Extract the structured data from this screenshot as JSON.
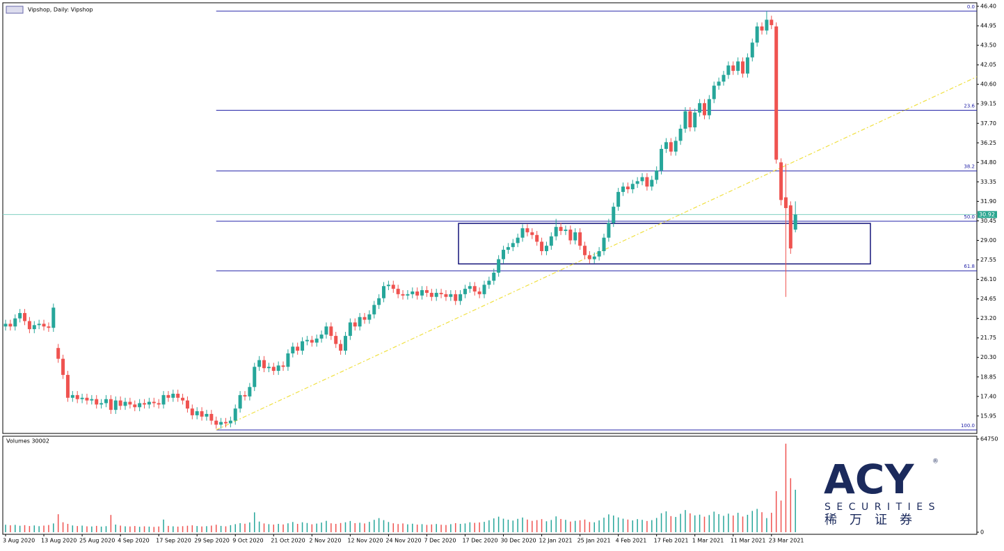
{
  "chart_data": {
    "type": "candlestick",
    "title": "Vipshop, Daily: Vipshop",
    "categories": [
      "3 Aug 2020",
      null,
      null,
      null,
      null,
      null,
      null,
      null,
      "13 Aug 2020",
      null,
      null,
      null,
      null,
      null,
      null,
      null,
      "25 Aug 2020",
      null,
      null,
      null,
      null,
      null,
      null,
      null,
      "4 Sep 2020",
      null,
      null,
      null,
      null,
      null,
      null,
      null,
      "17 Sep 2020",
      null,
      null,
      null,
      null,
      null,
      null,
      null,
      "29 Sep 2020",
      null,
      null,
      null,
      null,
      null,
      null,
      null,
      "9 Oct 2020",
      null,
      null,
      null,
      null,
      null,
      null,
      null,
      "21 Oct 2020",
      null,
      null,
      null,
      null,
      null,
      null,
      null,
      "2 Nov 2020",
      null,
      null,
      null,
      null,
      null,
      null,
      null,
      "12 Nov 2020",
      null,
      null,
      null,
      null,
      null,
      null,
      null,
      "24 Nov 2020",
      null,
      null,
      null,
      null,
      null,
      null,
      null,
      "7 Dec 2020",
      null,
      null,
      null,
      null,
      null,
      null,
      null,
      "17 Dec 2020",
      null,
      null,
      null,
      null,
      null,
      null,
      null,
      "30 Dec 2020",
      null,
      null,
      null,
      null,
      null,
      null,
      null,
      "12 Jan 2021",
      null,
      null,
      null,
      null,
      null,
      null,
      null,
      "25 Jan 2021",
      null,
      null,
      null,
      null,
      null,
      null,
      null,
      "4 Feb 2021",
      null,
      null,
      null,
      null,
      null,
      null,
      null,
      "17 Feb 2021",
      null,
      null,
      null,
      null,
      null,
      null,
      null,
      "1 Mar 2021",
      null,
      null,
      null,
      null,
      null,
      null,
      null,
      "11 Mar 2021",
      null,
      null,
      null,
      null,
      null,
      null,
      null,
      "23 Mar 2021",
      null,
      null,
      null,
      null,
      null
    ],
    "open": [
      22.6,
      22.8,
      22.6,
      23.2,
      23.6,
      23.0,
      22.4,
      22.7,
      22.8,
      22.6,
      22.5,
      21.0,
      20.2,
      19.0,
      17.3,
      17.5,
      17.2,
      17.3,
      17.1,
      17.2,
      16.8,
      16.9,
      17.2,
      16.4,
      17.1,
      16.7,
      17.0,
      16.8,
      16.6,
      16.9,
      16.8,
      17.0,
      16.9,
      16.8,
      17.5,
      17.3,
      17.6,
      17.3,
      17.1,
      16.5,
      16.0,
      16.3,
      15.9,
      16.1,
      15.6,
      15.3,
      15.5,
      15.4,
      15.6,
      16.5,
      17.5,
      17.4,
      18.1,
      19.6,
      20.1,
      19.5,
      19.6,
      19.3,
      19.7,
      19.6,
      20.6,
      21.1,
      20.8,
      21.5,
      21.6,
      21.4,
      21.7,
      22.0,
      22.6,
      21.9,
      21.3,
      20.8,
      21.9,
      22.9,
      22.6,
      23.3,
      23.1,
      23.5,
      24.2,
      24.7,
      25.6,
      25.7,
      25.4,
      25.0,
      24.9,
      25.0,
      25.2,
      24.9,
      25.3,
      25.1,
      24.8,
      25.1,
      25.0,
      24.8,
      25.0,
      24.5,
      25.0,
      25.4,
      25.6,
      25.2,
      25.0,
      25.7,
      26.0,
      26.6,
      27.6,
      28.3,
      28.5,
      28.8,
      29.2,
      29.9,
      29.6,
      29.4,
      28.9,
      28.2,
      28.6,
      29.3,
      30.0,
      29.7,
      29.8,
      29.0,
      29.6,
      28.6,
      27.9,
      27.6,
      27.8,
      28.2,
      29.2,
      30.3,
      31.5,
      32.6,
      33.0,
      32.8,
      33.2,
      33.4,
      33.7,
      33.0,
      33.5,
      34.2,
      35.8,
      36.3,
      35.6,
      36.4,
      37.3,
      38.6,
      37.4,
      38.5,
      39.2,
      38.3,
      39.5,
      40.5,
      40.8,
      41.3,
      42.0,
      41.6,
      42.3,
      41.4,
      42.6,
      43.7,
      44.9,
      44.6,
      45.4,
      44.9,
      34.8,
      32.2,
      31.6,
      29.8
    ],
    "high": [
      23.1,
      23.1,
      23.5,
      23.9,
      23.9,
      23.3,
      23.0,
      23.1,
      23.1,
      22.9,
      24.3,
      21.3,
      20.5,
      19.3,
      17.8,
      17.8,
      17.6,
      17.6,
      17.5,
      17.5,
      17.2,
      17.5,
      17.5,
      17.4,
      17.4,
      17.3,
      17.3,
      17.1,
      17.2,
      17.2,
      17.3,
      17.3,
      17.2,
      17.8,
      17.8,
      17.9,
      17.9,
      17.6,
      17.4,
      16.8,
      16.6,
      16.6,
      16.4,
      16.4,
      15.9,
      15.8,
      15.8,
      15.9,
      16.8,
      17.8,
      17.8,
      18.4,
      19.9,
      20.4,
      20.4,
      19.9,
      19.9,
      20.0,
      20.0,
      20.9,
      21.4,
      21.4,
      21.8,
      21.9,
      21.9,
      22.0,
      22.3,
      22.9,
      22.9,
      22.2,
      21.6,
      22.2,
      23.2,
      23.2,
      23.6,
      23.6,
      23.8,
      24.5,
      25.0,
      25.9,
      26.0,
      26.0,
      25.7,
      25.3,
      25.3,
      25.5,
      25.5,
      25.6,
      25.6,
      25.4,
      25.4,
      25.4,
      25.3,
      25.3,
      25.3,
      25.3,
      25.7,
      25.9,
      25.9,
      25.5,
      26.0,
      26.3,
      26.9,
      27.9,
      28.6,
      28.8,
      29.1,
      29.5,
      30.2,
      30.2,
      29.9,
      29.7,
      29.2,
      28.9,
      29.6,
      30.6,
      30.3,
      30.1,
      30.1,
      29.9,
      29.9,
      28.9,
      28.2,
      28.1,
      28.5,
      29.5,
      30.6,
      31.8,
      32.9,
      33.3,
      33.3,
      33.5,
      33.7,
      34.0,
      34.0,
      33.8,
      34.5,
      36.1,
      36.6,
      36.6,
      36.7,
      37.6,
      38.9,
      38.9,
      38.8,
      39.5,
      39.5,
      39.8,
      40.8,
      41.1,
      41.6,
      42.3,
      42.3,
      42.6,
      42.6,
      42.9,
      44.0,
      45.2,
      45.2,
      46.04,
      45.7,
      45.2,
      35.1,
      34.7,
      31.9,
      31.9
    ],
    "low": [
      22.3,
      22.3,
      22.3,
      22.9,
      22.7,
      22.1,
      22.1,
      22.4,
      22.3,
      22.2,
      22.2,
      19.9,
      18.7,
      17.0,
      17.0,
      16.9,
      16.9,
      16.8,
      16.8,
      16.5,
      16.5,
      16.6,
      16.1,
      16.1,
      16.4,
      16.4,
      16.5,
      16.3,
      16.3,
      16.5,
      16.5,
      16.6,
      16.5,
      16.5,
      17.0,
      17.0,
      17.0,
      16.8,
      16.2,
      15.7,
      15.7,
      15.6,
      15.6,
      15.3,
      15.0,
      15.0,
      15.1,
      15.1,
      15.3,
      16.2,
      17.1,
      17.1,
      17.8,
      19.3,
      19.2,
      19.2,
      19.0,
      19.0,
      19.3,
      19.3,
      20.3,
      20.5,
      20.5,
      21.2,
      21.1,
      21.1,
      21.4,
      21.7,
      21.6,
      21.0,
      20.5,
      20.5,
      21.6,
      22.3,
      22.3,
      22.8,
      22.8,
      23.2,
      23.9,
      24.4,
      25.3,
      25.1,
      24.7,
      24.6,
      24.6,
      24.7,
      24.6,
      24.6,
      24.8,
      24.5,
      24.5,
      24.7,
      24.5,
      24.5,
      24.2,
      24.2,
      24.7,
      25.1,
      24.9,
      24.7,
      24.7,
      25.4,
      25.7,
      26.3,
      27.3,
      28.0,
      28.2,
      28.5,
      28.9,
      29.3,
      29.1,
      28.6,
      27.9,
      27.9,
      28.3,
      29.0,
      29.4,
      29.4,
      28.7,
      28.7,
      28.3,
      27.6,
      27.3,
      27.3,
      27.5,
      27.9,
      28.9,
      30.0,
      31.2,
      32.3,
      32.5,
      32.5,
      32.9,
      33.1,
      32.7,
      32.7,
      33.2,
      33.9,
      35.5,
      35.3,
      35.3,
      36.1,
      37.0,
      37.1,
      37.1,
      38.2,
      38.0,
      38.0,
      39.2,
      40.2,
      40.5,
      41.0,
      41.3,
      41.3,
      41.1,
      41.1,
      42.3,
      43.4,
      44.3,
      44.3,
      44.7,
      34.7,
      31.6,
      24.8,
      28.0,
      29.6
    ],
    "close": [
      22.8,
      22.6,
      23.2,
      23.6,
      23.0,
      22.4,
      22.7,
      22.8,
      22.6,
      22.5,
      24.0,
      20.2,
      19.0,
      17.3,
      17.5,
      17.2,
      17.3,
      17.1,
      17.2,
      16.8,
      16.9,
      17.2,
      16.4,
      17.1,
      16.7,
      17.0,
      16.8,
      16.6,
      16.9,
      16.8,
      17.0,
      16.9,
      16.8,
      17.5,
      17.3,
      17.6,
      17.3,
      17.1,
      16.5,
      16.0,
      16.3,
      15.9,
      16.1,
      15.6,
      15.3,
      15.5,
      15.4,
      15.6,
      16.5,
      17.5,
      17.4,
      18.1,
      19.6,
      20.1,
      19.5,
      19.6,
      19.3,
      19.7,
      19.6,
      20.6,
      21.1,
      20.8,
      21.5,
      21.6,
      21.4,
      21.7,
      22.0,
      22.6,
      21.9,
      21.3,
      20.8,
      21.9,
      22.9,
      22.6,
      23.3,
      23.1,
      23.5,
      24.2,
      24.7,
      25.6,
      25.7,
      25.4,
      25.0,
      24.9,
      25.0,
      25.2,
      24.9,
      25.3,
      25.1,
      24.8,
      25.1,
      25.0,
      24.8,
      25.0,
      24.5,
      25.0,
      25.4,
      25.6,
      25.2,
      25.0,
      25.7,
      26.0,
      26.6,
      27.6,
      28.3,
      28.5,
      28.8,
      29.2,
      29.9,
      29.6,
      29.4,
      28.9,
      28.2,
      28.6,
      29.3,
      30.0,
      29.7,
      29.8,
      29.0,
      29.6,
      28.6,
      27.9,
      27.6,
      27.8,
      28.2,
      29.2,
      30.3,
      31.5,
      32.6,
      33.0,
      32.8,
      33.2,
      33.4,
      33.7,
      33.0,
      33.5,
      34.2,
      35.8,
      36.3,
      35.6,
      36.4,
      37.3,
      38.6,
      37.4,
      38.5,
      39.2,
      38.3,
      39.5,
      40.5,
      40.8,
      41.3,
      42.0,
      41.6,
      42.3,
      41.4,
      42.6,
      43.7,
      44.9,
      44.6,
      45.4,
      45.0,
      35.0,
      32.0,
      31.4,
      28.4,
      30.92
    ],
    "up_color": "#26a69a",
    "down_color": "#ef5350",
    "ylim": [
      14.65,
      46.66
    ],
    "yticks": [
      {
        "value": 46.4,
        "label": "46.40"
      },
      {
        "value": 44.95,
        "label": "44.95"
      },
      {
        "value": 43.5,
        "label": "43.50"
      },
      {
        "value": 42.05,
        "label": "42.05"
      },
      {
        "value": 40.6,
        "label": "40.60"
      },
      {
        "value": 39.15,
        "label": "39.15"
      },
      {
        "value": 37.7,
        "label": "37.70"
      },
      {
        "value": 36.25,
        "label": "36.25"
      },
      {
        "value": 34.8,
        "label": "34.80"
      },
      {
        "value": 33.35,
        "label": "33.35"
      },
      {
        "value": 31.9,
        "label": "31.90"
      },
      {
        "value": 30.45,
        "label": "30.45"
      },
      {
        "value": 29,
        "label": "29.00"
      },
      {
        "value": 27.55,
        "label": "27.55"
      },
      {
        "value": 26.1,
        "label": "26.10"
      },
      {
        "value": 24.65,
        "label": "24.65"
      },
      {
        "value": 23.2,
        "label": "23.20"
      },
      {
        "value": 21.75,
        "label": "21.75"
      },
      {
        "value": 20.3,
        "label": "20.30"
      },
      {
        "value": 18.85,
        "label": "18.85"
      },
      {
        "value": 17.4,
        "label": "17.40"
      },
      {
        "value": 15.95,
        "label": "15.95"
      }
    ],
    "grid": false,
    "last_price": 30.92,
    "last_price_color": "#7fcfc0",
    "fibonacci": {
      "color": "#2424a8",
      "levels": [
        {
          "label": "0.0",
          "price": 46.04
        },
        {
          "label": "23.6",
          "price": 38.67
        },
        {
          "label": "38.2",
          "price": 34.16
        },
        {
          "label": "50.0",
          "price": 30.42
        },
        {
          "label": "61.8",
          "price": 26.74
        },
        {
          "label": "100.0",
          "price": 14.91
        }
      ]
    },
    "rectangle": {
      "top": 30.26,
      "bottom": 27.25,
      "color": "#14147a"
    },
    "trendline": {
      "from": 14.91,
      "to": 41.16,
      "color": "#f0e040"
    },
    "volume": {
      "title": "Volumes 30002",
      "ylim": [
        0,
        64750
      ],
      "yticks": [
        0,
        64750
      ],
      "values": [
        5200,
        4800,
        5100,
        4500,
        4900,
        4300,
        4700,
        4200,
        4600,
        5000,
        6100,
        12500,
        6900,
        5800,
        4700,
        4300,
        4600,
        4100,
        4000,
        4400,
        3900,
        4200,
        12000,
        5300,
        4600,
        4100,
        4000,
        4300,
        3800,
        4100,
        3900,
        3700,
        4000,
        8800,
        4400,
        4100,
        3900,
        4200,
        4500,
        4800,
        4300,
        4000,
        4200,
        4600,
        5200,
        4400,
        4100,
        4900,
        5600,
        6300,
        5900,
        6800,
        13800,
        7400,
        6100,
        5600,
        5300,
        5800,
        5400,
        6200,
        7100,
        5800,
        6900,
        6400,
        5500,
        6000,
        6700,
        7900,
        6200,
        5800,
        6400,
        6900,
        7800,
        6300,
        6600,
        6100,
        7200,
        8600,
        9800,
        8400,
        7100,
        6200,
        5700,
        6100,
        5500,
        5900,
        5300,
        5600,
        5100,
        5400,
        5700,
        5200,
        5000,
        5600,
        6300,
        5800,
        6100,
        6900,
        6500,
        6800,
        7200,
        8300,
        9600,
        10800,
        9400,
        8700,
        8100,
        9300,
        10200,
        8800,
        7900,
        8400,
        9100,
        7600,
        8500,
        11000,
        9200,
        8600,
        7400,
        7900,
        8300,
        8800,
        7100,
        6900,
        8200,
        10100,
        12400,
        11600,
        10300,
        9400,
        8800,
        8200,
        9100,
        8600,
        7800,
        8400,
        9900,
        13200,
        14500,
        11200,
        10600,
        12800,
        15400,
        13100,
        11700,
        12200,
        10800,
        11900,
        14300,
        12600,
        11400,
        12900,
        11600,
        13500,
        10900,
        12100,
        14800,
        16200,
        13900,
        9800,
        13500,
        28500,
        22000,
        61500,
        37500,
        29500
      ]
    },
    "watermark": {
      "brand": "ACY",
      "mark": "®",
      "sub": "SECURITIES",
      "cn": "稀万证券"
    }
  }
}
